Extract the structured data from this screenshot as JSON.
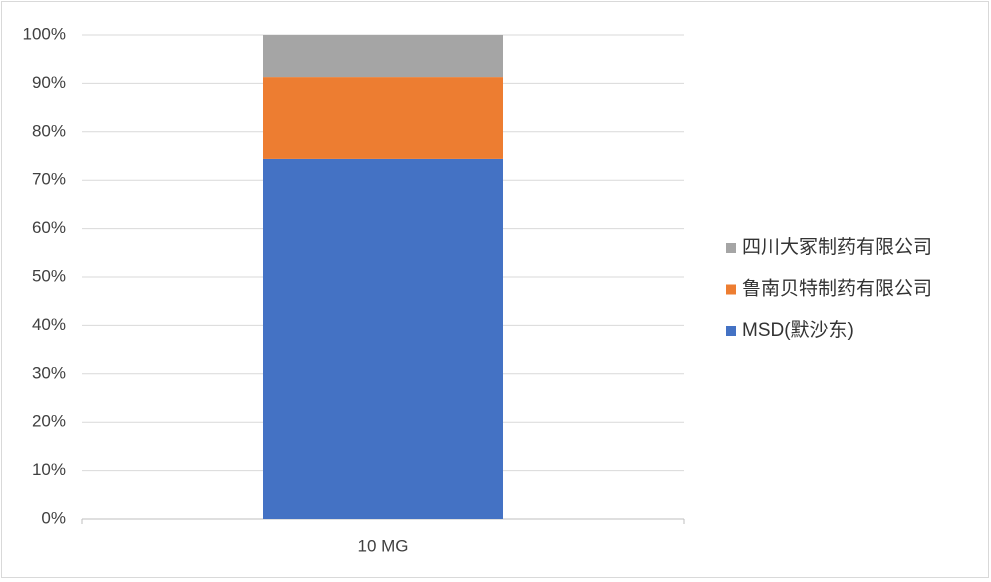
{
  "chart_data": {
    "type": "stacked_bar",
    "categories": [
      "10 MG"
    ],
    "series": [
      {
        "name": "MSD(默沙东)",
        "color": "#4472c4",
        "values": [
          74.4
        ]
      },
      {
        "name": "鲁南贝特制药有限公司",
        "color": "#ed7d31",
        "values": [
          16.9
        ]
      },
      {
        "name": "四川大冢制药有限公司",
        "color": "#a5a5a5",
        "values": [
          8.7
        ]
      }
    ],
    "ylim": [
      0,
      100
    ],
    "yticks": [
      {
        "value": 0,
        "label": "0%"
      },
      {
        "value": 10,
        "label": "10%"
      },
      {
        "value": 20,
        "label": "20%"
      },
      {
        "value": 30,
        "label": "30%"
      },
      {
        "value": 40,
        "label": "40%"
      },
      {
        "value": 50,
        "label": "50%"
      },
      {
        "value": 60,
        "label": "60%"
      },
      {
        "value": 70,
        "label": "70%"
      },
      {
        "value": 80,
        "label": "80%"
      },
      {
        "value": 90,
        "label": "90%"
      },
      {
        "value": 100,
        "label": "100%"
      }
    ],
    "grid": true,
    "legend": "right"
  }
}
